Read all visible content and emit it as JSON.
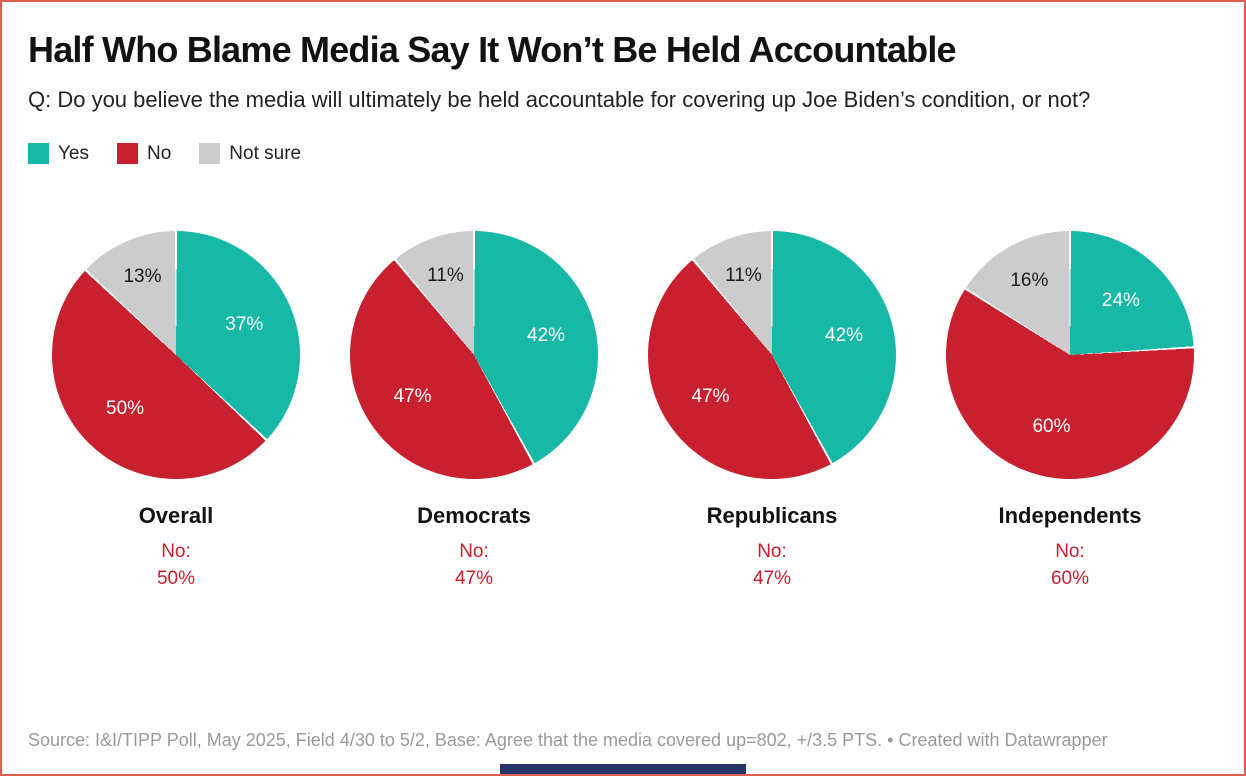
{
  "colors": {
    "yes": "#17b8a5",
    "no": "#c8202e",
    "not_sure": "#cccccc",
    "frame": "#e0604f",
    "bottom_bar": "#273266",
    "annotation_red": "#c8202e",
    "source_gray": "#9a9a9a"
  },
  "header": {
    "title": "Half Who Blame Media Say It Won’t Be Held Accountable",
    "question": "Q: Do you believe the media will ultimately be held accountable for covering up Joe Biden’s condition, or not?"
  },
  "legend": [
    {
      "label": "Yes",
      "color": "#17b8a5"
    },
    {
      "label": "No",
      "color": "#c8202e"
    },
    {
      "label": "Not sure",
      "color": "#cccccc"
    }
  ],
  "chart_data": {
    "type": "pie",
    "title": "Half Who Blame Media Say It Won’t Be Held Accountable",
    "subtitle": "Q: Do you believe the media will ultimately be held accountable for covering up Joe Biden’s condition, or not?",
    "series_order": [
      "Yes",
      "No",
      "Not sure"
    ],
    "colors": {
      "Yes": "#17b8a5",
      "No": "#c8202e",
      "Not sure": "#cccccc"
    },
    "start_angle_deg": 0,
    "direction": "clockwise",
    "legend_position": "top-left",
    "groups": [
      {
        "name": "Overall",
        "values": {
          "Yes": 37,
          "No": 50,
          "Not sure": 13
        },
        "annotation_label": "No:",
        "annotation_value": "50%"
      },
      {
        "name": "Democrats",
        "values": {
          "Yes": 42,
          "No": 47,
          "Not sure": 11
        },
        "annotation_label": "No:",
        "annotation_value": "47%"
      },
      {
        "name": "Republicans",
        "values": {
          "Yes": 42,
          "No": 47,
          "Not sure": 11
        },
        "annotation_label": "No:",
        "annotation_value": "47%"
      },
      {
        "name": "Independents",
        "values": {
          "Yes": 24,
          "No": 60,
          "Not sure": 16
        },
        "annotation_label": "No:",
        "annotation_value": "60%"
      }
    ]
  },
  "footer": {
    "source": "Source: I&I/TIPP Poll, May 2025, Field 4/30 to 5/2, Base: Agree that the media covered up=802, +/3.5 PTS. • Created with Datawrapper"
  }
}
